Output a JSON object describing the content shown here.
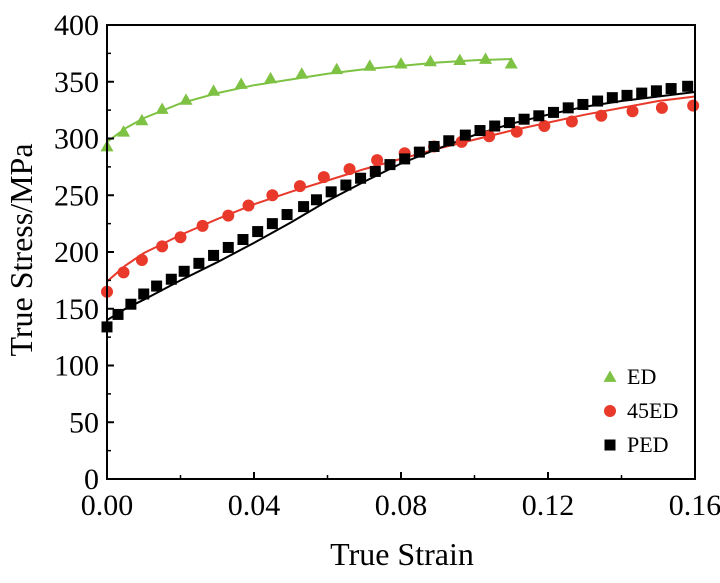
{
  "chart_data": {
    "type": "scatter",
    "title": "",
    "xlabel": "True Strain",
    "ylabel": "True Stress/MPa",
    "xlim": [
      0.0,
      0.16
    ],
    "ylim": [
      0,
      400
    ],
    "xticks": [
      "0.00",
      "0.04",
      "0.08",
      "0.12",
      "0.16"
    ],
    "xtick_values": [
      0.0,
      0.04,
      0.08,
      0.12,
      0.16
    ],
    "yticks": [
      "0",
      "50",
      "100",
      "150",
      "200",
      "250",
      "300",
      "350",
      "400"
    ],
    "ytick_values": [
      0,
      50,
      100,
      150,
      200,
      250,
      300,
      350,
      400
    ],
    "grid": false,
    "legend_position": "bottom-right",
    "series": [
      {
        "name": "ED",
        "color": "#7dc242",
        "marker": "triangle",
        "points": [
          [
            0.0,
            293
          ],
          [
            0.0045,
            306
          ],
          [
            0.0095,
            316
          ],
          [
            0.015,
            326
          ],
          [
            0.0215,
            334
          ],
          [
            0.029,
            342
          ],
          [
            0.0365,
            348
          ],
          [
            0.0445,
            353
          ],
          [
            0.053,
            357
          ],
          [
            0.0625,
            361
          ],
          [
            0.0715,
            364
          ],
          [
            0.08,
            366
          ],
          [
            0.088,
            368
          ],
          [
            0.096,
            369
          ],
          [
            0.103,
            370
          ],
          [
            0.11,
            366
          ]
        ],
        "fit": [
          [
            0.0,
            297
          ],
          [
            0.005,
            309
          ],
          [
            0.01,
            318
          ],
          [
            0.02,
            331
          ],
          [
            0.03,
            340
          ],
          [
            0.04,
            347
          ],
          [
            0.05,
            352
          ],
          [
            0.06,
            357
          ],
          [
            0.07,
            361
          ],
          [
            0.08,
            364
          ],
          [
            0.09,
            367
          ],
          [
            0.1,
            369
          ],
          [
            0.11,
            370
          ]
        ]
      },
      {
        "name": "45ED",
        "color": "#e8392b",
        "marker": "circle",
        "points": [
          [
            0.0,
            165
          ],
          [
            0.0045,
            182
          ],
          [
            0.0095,
            193
          ],
          [
            0.015,
            205
          ],
          [
            0.02,
            213
          ],
          [
            0.026,
            223
          ],
          [
            0.033,
            232
          ],
          [
            0.0385,
            241
          ],
          [
            0.045,
            250
          ],
          [
            0.0525,
            258
          ],
          [
            0.059,
            266
          ],
          [
            0.066,
            273
          ],
          [
            0.0735,
            281
          ],
          [
            0.081,
            287
          ],
          [
            0.089,
            293
          ],
          [
            0.0965,
            297
          ],
          [
            0.104,
            302
          ],
          [
            0.1115,
            306
          ],
          [
            0.119,
            311
          ],
          [
            0.1265,
            315
          ],
          [
            0.1345,
            320
          ],
          [
            0.143,
            324
          ],
          [
            0.151,
            327
          ],
          [
            0.1595,
            329
          ]
        ],
        "fit": [
          [
            0.0,
            174
          ],
          [
            0.005,
            188
          ],
          [
            0.01,
            199
          ],
          [
            0.02,
            215
          ],
          [
            0.03,
            229
          ],
          [
            0.04,
            242
          ],
          [
            0.05,
            253
          ],
          [
            0.06,
            263
          ],
          [
            0.07,
            273
          ],
          [
            0.08,
            282
          ],
          [
            0.09,
            291
          ],
          [
            0.1,
            299
          ],
          [
            0.11,
            307
          ],
          [
            0.12,
            314
          ],
          [
            0.13,
            321
          ],
          [
            0.14,
            327
          ],
          [
            0.15,
            333
          ],
          [
            0.16,
            337
          ]
        ]
      },
      {
        "name": "PED",
        "color": "#000000",
        "marker": "square",
        "points": [
          [
            0.0,
            134
          ],
          [
            0.003,
            145
          ],
          [
            0.0065,
            154
          ],
          [
            0.01,
            163
          ],
          [
            0.0135,
            170
          ],
          [
            0.0175,
            176
          ],
          [
            0.021,
            183
          ],
          [
            0.025,
            190
          ],
          [
            0.029,
            197
          ],
          [
            0.033,
            204
          ],
          [
            0.037,
            211
          ],
          [
            0.041,
            218
          ],
          [
            0.045,
            225
          ],
          [
            0.049,
            233
          ],
          [
            0.0535,
            240
          ],
          [
            0.057,
            246
          ],
          [
            0.061,
            253
          ],
          [
            0.065,
            259
          ],
          [
            0.069,
            265
          ],
          [
            0.073,
            271
          ],
          [
            0.077,
            277
          ],
          [
            0.081,
            282
          ],
          [
            0.085,
            288
          ],
          [
            0.089,
            293
          ],
          [
            0.093,
            298
          ],
          [
            0.0975,
            303
          ],
          [
            0.1015,
            307
          ],
          [
            0.1055,
            311
          ],
          [
            0.1095,
            314
          ],
          [
            0.1135,
            317
          ],
          [
            0.1175,
            320
          ],
          [
            0.1215,
            323
          ],
          [
            0.1255,
            327
          ],
          [
            0.1295,
            330
          ],
          [
            0.1335,
            333
          ],
          [
            0.1375,
            336
          ],
          [
            0.1415,
            338
          ],
          [
            0.1455,
            340
          ],
          [
            0.1495,
            342
          ],
          [
            0.1535,
            344
          ],
          [
            0.158,
            346
          ]
        ],
        "fit": [
          [
            0.0,
            140
          ],
          [
            0.005,
            150
          ],
          [
            0.01,
            158
          ],
          [
            0.02,
            175
          ],
          [
            0.03,
            191
          ],
          [
            0.04,
            208
          ],
          [
            0.05,
            226
          ],
          [
            0.06,
            245
          ],
          [
            0.07,
            262
          ],
          [
            0.08,
            278
          ],
          [
            0.09,
            291
          ],
          [
            0.1,
            303
          ],
          [
            0.11,
            313
          ],
          [
            0.12,
            321
          ],
          [
            0.13,
            328
          ],
          [
            0.14,
            333
          ],
          [
            0.15,
            337
          ],
          [
            0.16,
            341
          ]
        ]
      }
    ]
  }
}
